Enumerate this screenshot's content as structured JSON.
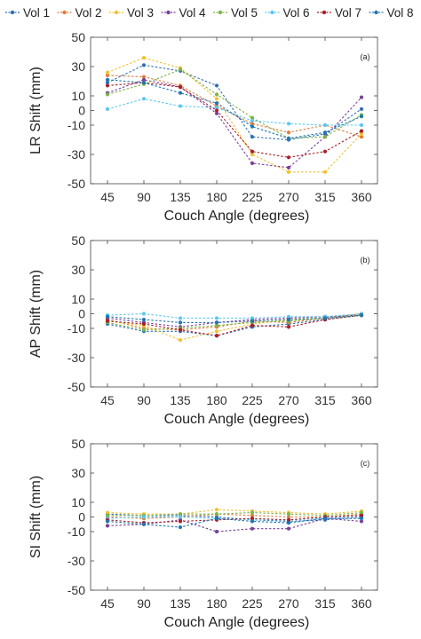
{
  "legend": [
    {
      "name": "Vol 1",
      "color": "#2f6fb5"
    },
    {
      "name": "Vol 2",
      "color": "#e07b39"
    },
    {
      "name": "Vol 3",
      "color": "#f2c12e"
    },
    {
      "name": "Vol 4",
      "color": "#7b3f98"
    },
    {
      "name": "Vol 5",
      "color": "#7ab648"
    },
    {
      "name": "Vol 6",
      "color": "#5bc8f0"
    },
    {
      "name": "Vol 7",
      "color": "#a8202a"
    },
    {
      "name": "Vol 8",
      "color": "#1f77b4"
    }
  ],
  "chart_data": [
    {
      "type": "line",
      "panel_label": "(a)",
      "xlabel": "Couch Angle (degrees)",
      "ylabel": "LR Shift (mm)",
      "x": [
        45,
        90,
        135,
        180,
        225,
        270,
        315,
        360
      ],
      "xticks": [
        "45",
        "90",
        "135",
        "180",
        "225",
        "270",
        "315",
        "360"
      ],
      "ylim": [
        -50,
        50
      ],
      "yticks": [
        -50,
        -30,
        -10,
        0,
        10,
        30,
        50
      ],
      "grid": false,
      "series": [
        {
          "name": "Vol 1",
          "values": [
            19,
            31,
            27,
            17,
            -18,
            -20,
            -16,
            1
          ]
        },
        {
          "name": "Vol 2",
          "values": [
            24,
            23,
            17,
            3,
            -9,
            -15,
            -10,
            -18
          ]
        },
        {
          "name": "Vol 3",
          "values": [
            26,
            36,
            29,
            8,
            -30,
            -42,
            -42,
            -16
          ]
        },
        {
          "name": "Vol 4",
          "values": [
            12,
            21,
            16,
            -2,
            -36,
            -39,
            -18,
            9
          ]
        },
        {
          "name": "Vol 5",
          "values": [
            11,
            18,
            28,
            11,
            -5,
            -19,
            -18,
            -3
          ]
        },
        {
          "name": "Vol 6",
          "values": [
            1,
            8,
            3,
            2,
            -7,
            -9,
            -10,
            -10
          ]
        },
        {
          "name": "Vol 7",
          "values": [
            17,
            19,
            16,
            0,
            -28,
            -32,
            -28,
            -14
          ]
        },
        {
          "name": "Vol 8",
          "values": [
            21,
            19,
            12,
            5,
            -11,
            -19,
            -15,
            -4
          ]
        }
      ]
    },
    {
      "type": "line",
      "panel_label": "(b)",
      "xlabel": "Couch Angle (degrees)",
      "ylabel": "AP Shift (mm)",
      "x": [
        45,
        90,
        135,
        180,
        225,
        270,
        315,
        360
      ],
      "xticks": [
        "45",
        "90",
        "135",
        "180",
        "225",
        "270",
        "315",
        "360"
      ],
      "ylim": [
        -50,
        50
      ],
      "yticks": [
        -50,
        -30,
        -10,
        0,
        10,
        30,
        50
      ],
      "grid": false,
      "series": [
        {
          "name": "Vol 1",
          "values": [
            -7,
            -12,
            -12,
            -15,
            -9,
            -7,
            -4,
            -1
          ]
        },
        {
          "name": "Vol 2",
          "values": [
            -4,
            -10,
            -11,
            -9,
            -5,
            -6,
            -3,
            0
          ]
        },
        {
          "name": "Vol 3",
          "values": [
            -5,
            -8,
            -18,
            -12,
            -7,
            -4,
            -3,
            -1
          ]
        },
        {
          "name": "Vol 4",
          "values": [
            -3,
            -6,
            -9,
            -6,
            -4,
            -3,
            -2,
            -1
          ]
        },
        {
          "name": "Vol 5",
          "values": [
            -6,
            -11,
            -10,
            -8,
            -6,
            -5,
            -3,
            -1
          ]
        },
        {
          "name": "Vol 6",
          "values": [
            -1,
            0,
            -3,
            -3,
            -3,
            -2,
            -2,
            0
          ]
        },
        {
          "name": "Vol 7",
          "values": [
            -5,
            -7,
            -11,
            -15,
            -8,
            -9,
            -4,
            -1
          ]
        },
        {
          "name": "Vol 8",
          "values": [
            -2,
            -4,
            -6,
            -6,
            -5,
            -4,
            -3,
            -1
          ]
        }
      ]
    },
    {
      "type": "line",
      "panel_label": "(c)",
      "xlabel": "Couch Angle (degrees)",
      "ylabel": "SI Shift (mm)",
      "x": [
        45,
        90,
        135,
        180,
        225,
        270,
        315,
        360
      ],
      "xticks": [
        "45",
        "90",
        "135",
        "180",
        "225",
        "270",
        "315",
        "360"
      ],
      "ylim": [
        -50,
        50
      ],
      "yticks": [
        -50,
        -30,
        -10,
        0,
        10,
        30,
        50
      ],
      "grid": false,
      "series": [
        {
          "name": "Vol 1",
          "values": [
            2,
            1,
            1,
            0,
            -2,
            -3,
            -2,
            0
          ]
        },
        {
          "name": "Vol 2",
          "values": [
            0,
            -1,
            0,
            2,
            1,
            0,
            0,
            2
          ]
        },
        {
          "name": "Vol 3",
          "values": [
            3,
            2,
            2,
            5,
            4,
            3,
            2,
            4
          ]
        },
        {
          "name": "Vol 4",
          "values": [
            -6,
            -5,
            -2,
            -10,
            -8,
            -8,
            -1,
            -3
          ]
        },
        {
          "name": "Vol 5",
          "values": [
            1,
            1,
            2,
            2,
            3,
            2,
            1,
            3
          ]
        },
        {
          "name": "Vol 6",
          "values": [
            -1,
            0,
            0,
            -1,
            -2,
            -2,
            -1,
            1
          ]
        },
        {
          "name": "Vol 7",
          "values": [
            -2,
            -4,
            -3,
            -2,
            -1,
            -2,
            0,
            1
          ]
        },
        {
          "name": "Vol 8",
          "values": [
            -3,
            -5,
            -7,
            -1,
            -3,
            -4,
            -1,
            -1
          ]
        }
      ]
    }
  ]
}
